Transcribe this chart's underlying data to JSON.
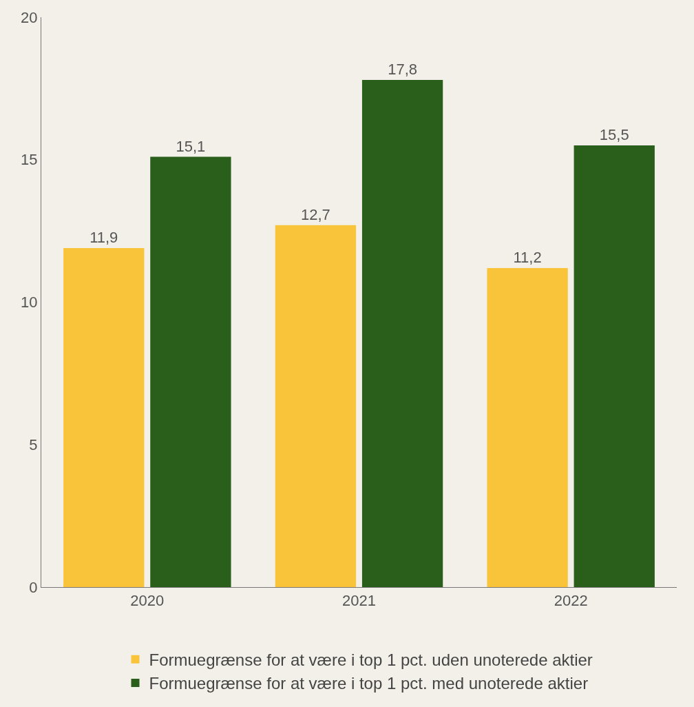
{
  "chart_data": {
    "type": "bar",
    "categories": [
      "2020",
      "2021",
      "2022"
    ],
    "series": [
      {
        "name": "Formuegrænse for at være i top 1 pct. uden unoterede aktier",
        "color": "#f9c43a",
        "values": [
          11.9,
          12.7,
          11.2
        ],
        "value_labels": [
          "11,9",
          "12,7",
          "11,2"
        ]
      },
      {
        "name": "Formuegrænse for at være i top 1 pct. med unoterede aktier",
        "color": "#2a5e1b",
        "values": [
          15.1,
          17.8,
          15.5
        ],
        "value_labels": [
          "15,1",
          "17,8",
          "15,5"
        ]
      }
    ],
    "ylim": [
      0,
      20
    ],
    "yticks": [
      0,
      5,
      10,
      15,
      20
    ],
    "grid": false,
    "legend": "bottom"
  }
}
